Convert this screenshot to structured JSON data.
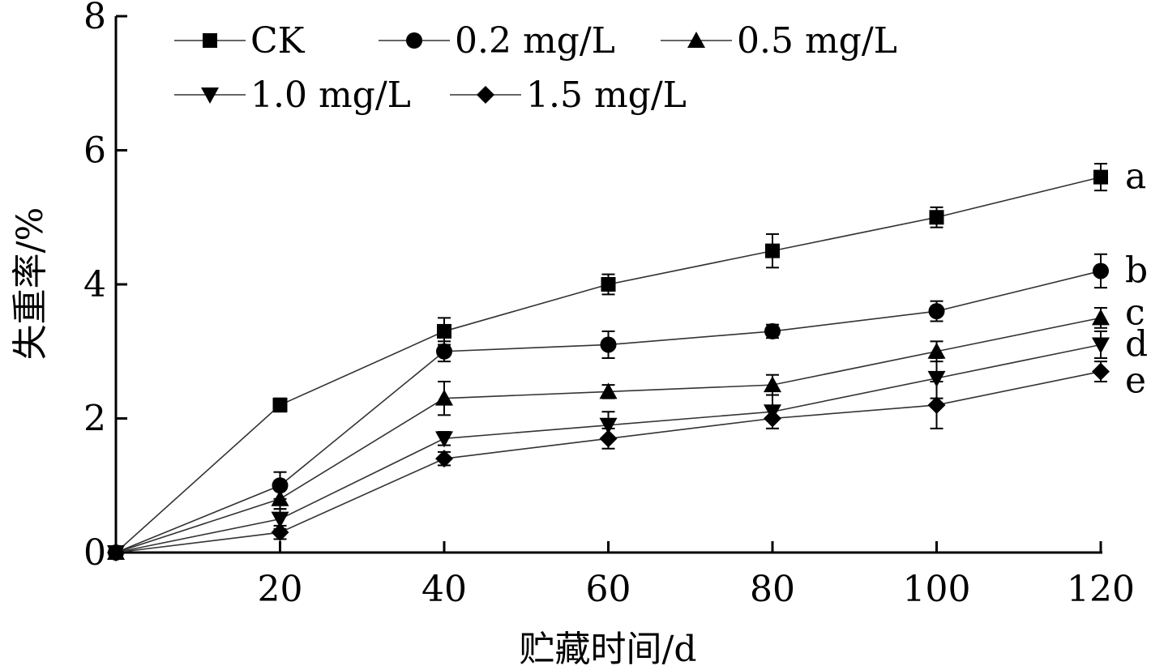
{
  "chart_data": {
    "type": "line",
    "xlabel": "贮藏时间/d",
    "ylabel": "失重率/%",
    "xlim": [
      0,
      120
    ],
    "ylim": [
      0,
      8
    ],
    "x_ticks": [
      20,
      40,
      60,
      80,
      100,
      120
    ],
    "y_ticks": [
      0,
      2,
      4,
      6,
      8
    ],
    "grid": false,
    "legend_position": "top-left",
    "x": [
      0,
      20,
      40,
      60,
      80,
      100,
      120
    ],
    "series": [
      {
        "name": "CK",
        "marker": "square",
        "values": [
          0,
          2.2,
          3.3,
          4.0,
          4.5,
          5.0,
          5.6
        ],
        "errors": [
          0.05,
          0.1,
          0.2,
          0.15,
          0.25,
          0.15,
          0.2
        ],
        "end_label": "a"
      },
      {
        "name": "0.2 mg/L",
        "marker": "circle",
        "values": [
          0,
          1.0,
          3.0,
          3.1,
          3.3,
          3.6,
          4.2
        ],
        "errors": [
          0.05,
          0.2,
          0.15,
          0.2,
          0.1,
          0.15,
          0.25
        ],
        "end_label": "b"
      },
      {
        "name": "0.5 mg/L",
        "marker": "triangle-up",
        "values": [
          0,
          0.8,
          2.3,
          2.4,
          2.5,
          3.0,
          3.5
        ],
        "errors": [
          0.05,
          0.15,
          0.25,
          0.1,
          0.15,
          0.15,
          0.15
        ],
        "end_label": "c"
      },
      {
        "name": "1.0 mg/L",
        "marker": "triangle-down",
        "values": [
          0,
          0.5,
          1.7,
          1.9,
          2.1,
          2.6,
          3.1
        ],
        "errors": [
          0.05,
          0.15,
          0.1,
          0.2,
          0.25,
          0.3,
          0.2
        ],
        "end_label": "d"
      },
      {
        "name": "1.5 mg/L",
        "marker": "diamond",
        "values": [
          0,
          0.3,
          1.4,
          1.7,
          2.0,
          2.2,
          2.7
        ],
        "errors": [
          0.05,
          0.1,
          0.1,
          0.15,
          0.15,
          0.35,
          0.15
        ],
        "end_label": "e"
      }
    ]
  }
}
